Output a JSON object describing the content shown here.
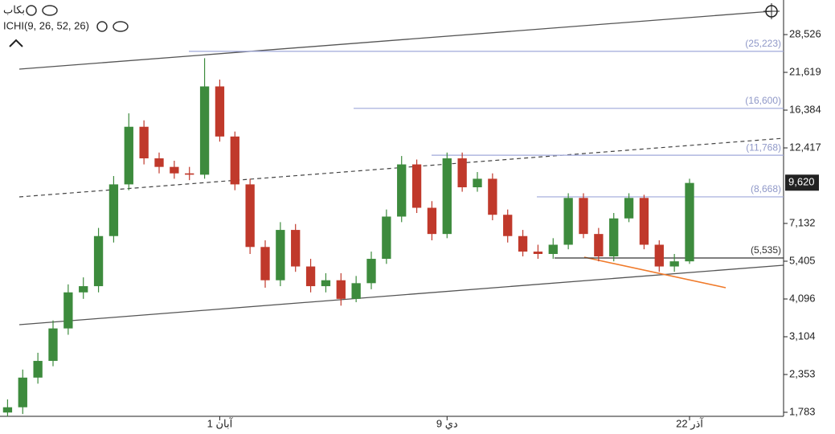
{
  "header": {
    "symbol": "بكاب",
    "indicator": "ICHI(9, 26, 52, 26)"
  },
  "chart_data": {
    "type": "candlestick",
    "log_scale": true,
    "categories": [
      null,
      null,
      null,
      null,
      null,
      null,
      null,
      null,
      null,
      null,
      null,
      null,
      null,
      null,
      "1 آبان",
      null,
      null,
      null,
      null,
      null,
      null,
      null,
      null,
      null,
      null,
      null,
      null,
      null,
      null,
      "9 دي",
      null,
      null,
      null,
      null,
      null,
      null,
      null,
      null,
      null,
      null,
      null,
      null,
      null,
      null,
      null,
      "22 آذر"
    ],
    "open": [
      1780,
      1850,
      2300,
      2600,
      3300,
      4300,
      4500,
      6500,
      9500,
      14500,
      11500,
      10800,
      10300,
      10200,
      19500,
      13500,
      9500,
      6000,
      4700,
      6800,
      5200,
      4500,
      4700,
      4100,
      4600,
      5500,
      7500,
      11000,
      8000,
      6600,
      11500,
      9300,
      9900,
      7600,
      6500,
      5800,
      5700,
      6100,
      8600,
      6600,
      5600,
      7400,
      8600,
      6100,
      5200,
      5400
    ],
    "high": [
      1960,
      2440,
      2760,
      3500,
      4560,
      4800,
      6900,
      10100,
      16000,
      15200,
      12000,
      11300,
      10800,
      24000,
      20500,
      14000,
      9900,
      6300,
      7200,
      7100,
      5500,
      4950,
      4950,
      4850,
      5800,
      7900,
      11700,
      11400,
      8400,
      12000,
      12000,
      10400,
      10300,
      7900,
      6800,
      6100,
      6400,
      8900,
      8900,
      6900,
      7700,
      8900,
      8800,
      6300,
      5700,
      9900
    ],
    "low": [
      1730,
      1760,
      2200,
      2500,
      3150,
      4100,
      4300,
      6200,
      9100,
      11000,
      10300,
      9900,
      9800,
      9900,
      13000,
      9100,
      5700,
      4450,
      4500,
      5000,
      4300,
      4300,
      3900,
      4000,
      4400,
      5300,
      7200,
      7700,
      6300,
      6400,
      9000,
      9000,
      7300,
      6200,
      5600,
      5500,
      5500,
      5900,
      6400,
      5400,
      5400,
      7200,
      5900,
      5000,
      5000,
      5300
    ],
    "close": [
      1850,
      2300,
      2600,
      3300,
      4300,
      4500,
      6500,
      9500,
      14500,
      11500,
      10800,
      10300,
      10200,
      19500,
      13500,
      9500,
      6000,
      4700,
      6800,
      5200,
      4500,
      4700,
      4100,
      4600,
      5500,
      7500,
      11000,
      8000,
      6600,
      11500,
      9300,
      9900,
      7600,
      6500,
      5800,
      5700,
      6100,
      8600,
      6600,
      5600,
      7400,
      8600,
      6100,
      5200,
      5400,
      9600
    ],
    "up_color": "#3d8b3d",
    "down_color": "#c0392b",
    "ylim": [
      1731,
      36770
    ],
    "yticks": [
      {
        "value": 1783,
        "label": "1,783"
      },
      {
        "value": 2353,
        "label": "2,353"
      },
      {
        "value": 3104,
        "label": "3,104"
      },
      {
        "value": 4096,
        "label": "4,096"
      },
      {
        "value": 5405,
        "label": "5,405"
      },
      {
        "value": 7132,
        "label": "7,132"
      },
      {
        "value": 12417,
        "label": "12,417"
      },
      {
        "value": 16384,
        "label": "16,384"
      },
      {
        "value": 21619,
        "label": "21,619"
      },
      {
        "value": 28526,
        "label": "28,526"
      }
    ],
    "last_price": {
      "value": 9620,
      "label": "9,620"
    },
    "levels": [
      {
        "value": 25223,
        "label": "(25,223)",
        "color": "#9fa8da"
      },
      {
        "value": 16600,
        "label": "(16,600)",
        "color": "#9fa8da"
      },
      {
        "value": 11768,
        "label": "(11,768)",
        "color": "#9fa8da"
      },
      {
        "value": 8668,
        "label": "(8,668)",
        "color": "#9fa8da"
      },
      {
        "value": 5535,
        "label": "(5,535)",
        "color": "#333333"
      }
    ]
  }
}
